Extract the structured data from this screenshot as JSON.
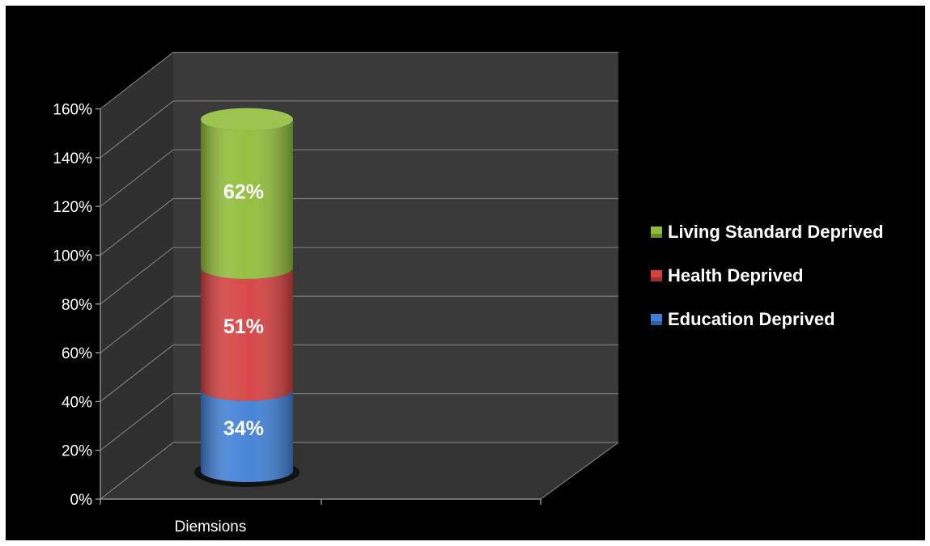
{
  "chart_data": {
    "type": "bar",
    "stacked": true,
    "three_d": true,
    "categories": [
      "Diemsions"
    ],
    "series": [
      {
        "name": "Education Deprived",
        "values": [
          34
        ],
        "label": "34%",
        "color": "#3f7fd6"
      },
      {
        "name": "Health Deprived",
        "values": [
          51
        ],
        "label": "51%",
        "color": "#d53f3f"
      },
      {
        "name": "Living Standard Deprived",
        "values": [
          62
        ],
        "label": "62%",
        "color": "#8fbc38"
      }
    ],
    "y_ticks": [
      "0%",
      "20%",
      "40%",
      "60%",
      "80%",
      "100%",
      "120%",
      "140%",
      "160%"
    ],
    "ylim": [
      0,
      160
    ],
    "grid": true,
    "legend_position": "right",
    "legend": [
      "Living Standard Deprived",
      "Health Deprived",
      "Education Deprived"
    ],
    "background": "#000000",
    "wall_color": "#3a3a3a",
    "floor_color": "#333333",
    "gridline_color": "#7a7a7a"
  }
}
